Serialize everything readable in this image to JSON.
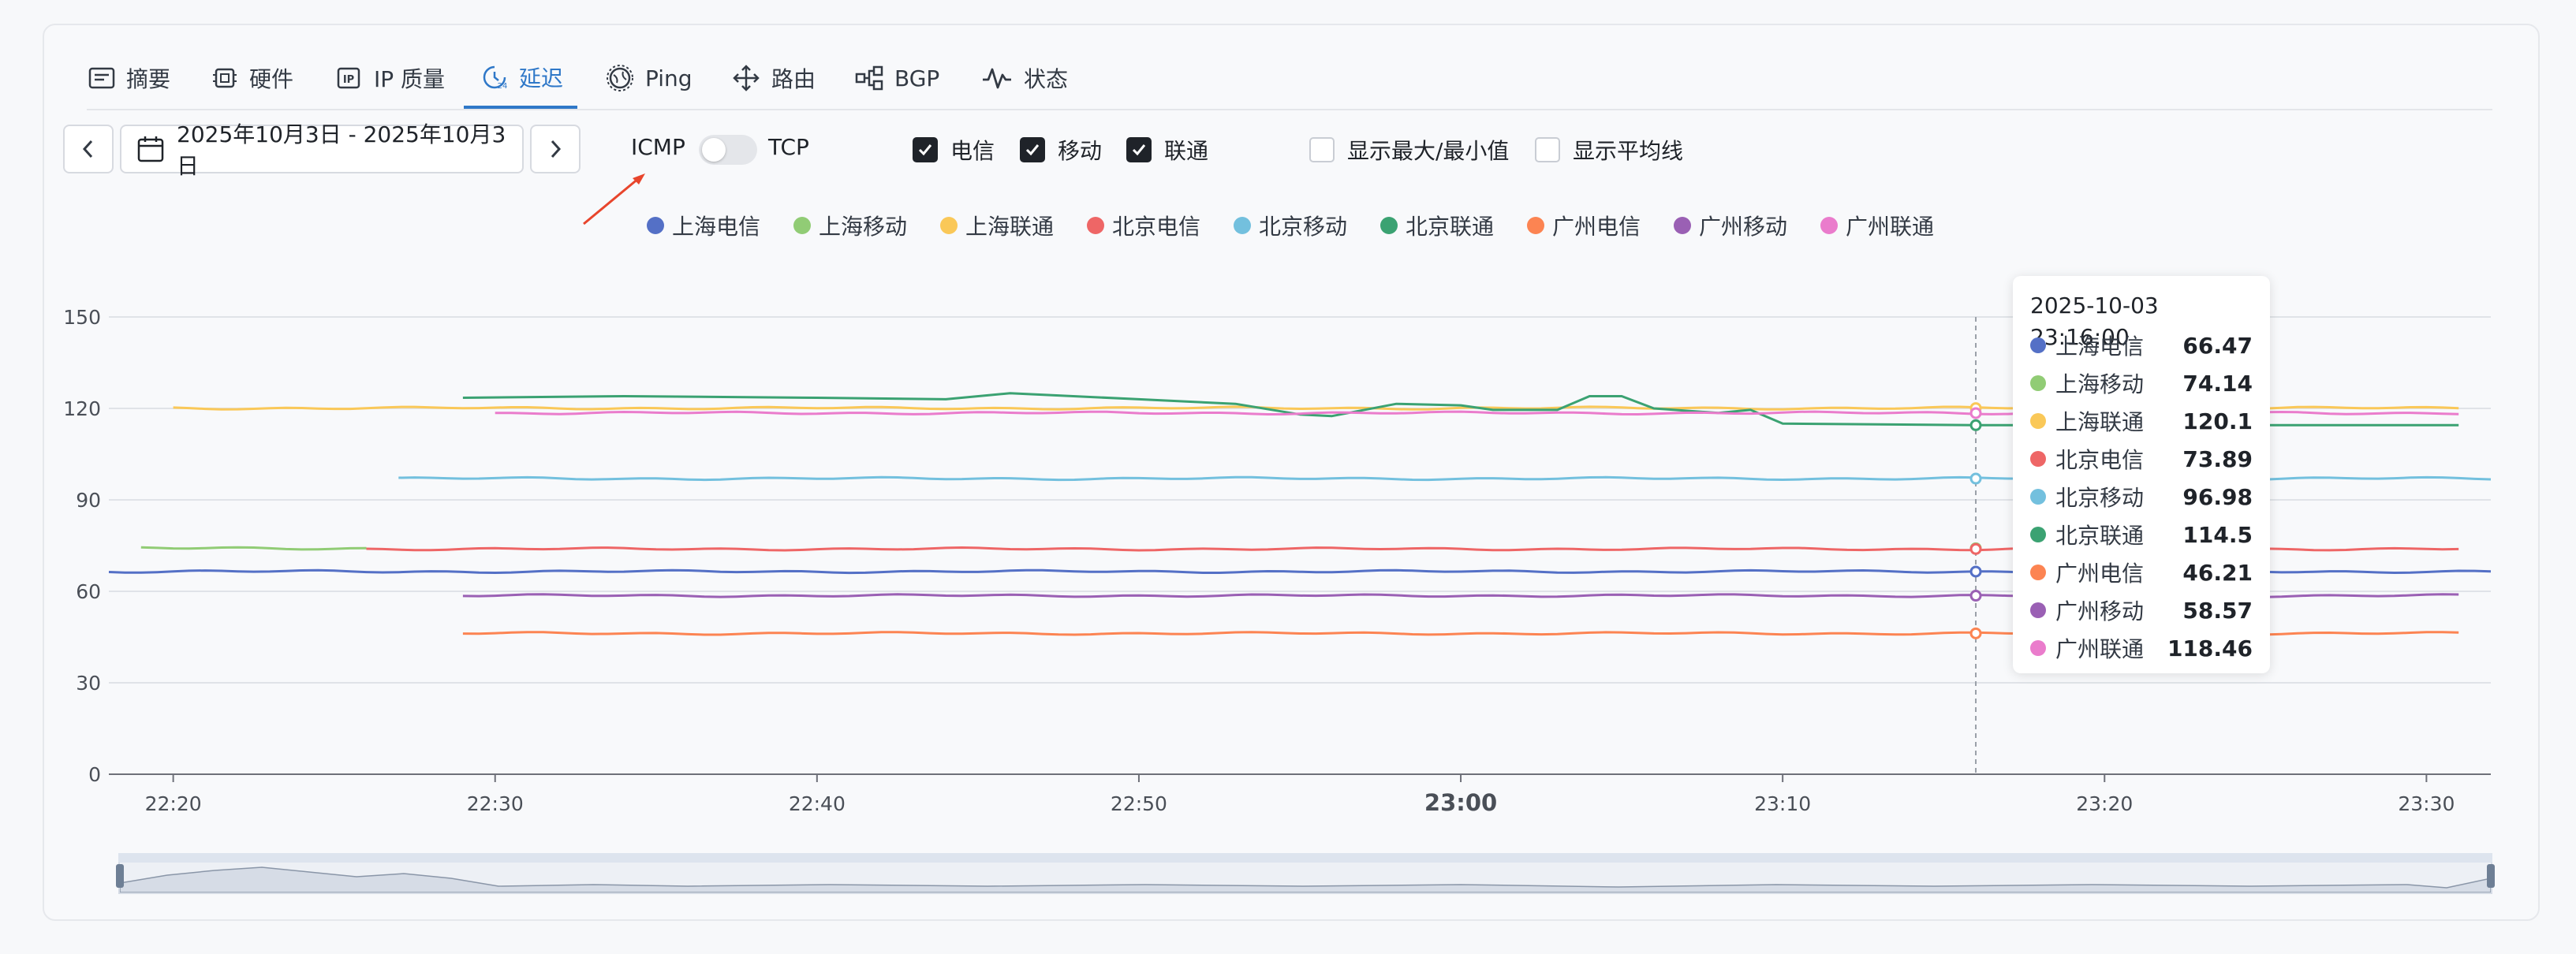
{
  "tabs": [
    {
      "label": "摘要",
      "icon": "summary-icon"
    },
    {
      "label": "硬件",
      "icon": "chip-icon"
    },
    {
      "label": "IP 质量",
      "icon": "ip-icon"
    },
    {
      "label": "延迟",
      "icon": "latency-clock-icon",
      "active": true
    },
    {
      "label": "Ping",
      "icon": "globe-icon"
    },
    {
      "label": "路由",
      "icon": "route-icon"
    },
    {
      "label": "BGP",
      "icon": "bgp-icon"
    },
    {
      "label": "状态",
      "icon": "pulse-icon"
    }
  ],
  "toolbar": {
    "date_range": "2025年10月3日 - 2025年10月3日",
    "protocol_left": "ICMP",
    "protocol_right": "TCP",
    "protocol_selected": "ICMP",
    "isps": [
      {
        "label": "电信",
        "checked": true
      },
      {
        "label": "移动",
        "checked": true
      },
      {
        "label": "联通",
        "checked": true
      }
    ],
    "options": [
      {
        "label": "显示最大/最小值",
        "checked": false
      },
      {
        "label": "显示平均线",
        "checked": false
      }
    ]
  },
  "colors": {
    "accent": "#2f78c8",
    "series": [
      "#5470c6",
      "#91cc75",
      "#fac858",
      "#ee6666",
      "#73c0de",
      "#3ba272",
      "#fc8452",
      "#9a60b4",
      "#ea7ccc"
    ]
  },
  "chart_data": {
    "type": "line",
    "x_ticks": [
      "22:20",
      "22:30",
      "22:40",
      "22:50",
      "23:00",
      "23:10",
      "23:20",
      "23:30"
    ],
    "y_ticks": [
      0,
      30,
      60,
      90,
      120,
      150
    ],
    "ylim": [
      0,
      150
    ],
    "xlim_minutes": [
      "22:18",
      "23:32"
    ],
    "grid": true,
    "legend_position": "top",
    "series": [
      {
        "name": "上海电信",
        "start": "22:18",
        "end": "23:32",
        "value": 66.5
      },
      {
        "name": "上海移动",
        "start": "22:19",
        "end": "22:26",
        "value": 74.1
      },
      {
        "name": "上海联通",
        "start": "22:20",
        "end": "23:31",
        "value": 120.1
      },
      {
        "name": "北京电信",
        "start": "22:26",
        "end": "23:31",
        "value": 73.9
      },
      {
        "name": "北京移动",
        "start": "22:27",
        "end": "23:32",
        "value": 97.0
      },
      {
        "name": "北京联通",
        "start": "22:29",
        "end": "23:31",
        "values": [
          {
            "t": "22:29",
            "v": 123.5
          },
          {
            "t": "22:34",
            "v": 124
          },
          {
            "t": "22:40",
            "v": 123.5
          },
          {
            "t": "22:44",
            "v": 123
          },
          {
            "t": "22:46",
            "v": 125
          },
          {
            "t": "22:50",
            "v": 123
          },
          {
            "t": "22:53",
            "v": 121.5
          },
          {
            "t": "22:55",
            "v": 118
          },
          {
            "t": "22:56",
            "v": 117.5
          },
          {
            "t": "22:58",
            "v": 121.5
          },
          {
            "t": "23:00",
            "v": 121
          },
          {
            "t": "23:01",
            "v": 119.5
          },
          {
            "t": "23:03",
            "v": 119.5
          },
          {
            "t": "23:04",
            "v": 124
          },
          {
            "t": "23:05",
            "v": 124
          },
          {
            "t": "23:06",
            "v": 120
          },
          {
            "t": "23:08",
            "v": 118.5
          },
          {
            "t": "23:09",
            "v": 119.5
          },
          {
            "t": "23:10",
            "v": 115
          },
          {
            "t": "23:16",
            "v": 114.5
          },
          {
            "t": "23:31",
            "v": 114.5
          }
        ]
      },
      {
        "name": "广州电信",
        "start": "22:29",
        "end": "23:31",
        "value": 46.2
      },
      {
        "name": "广州移动",
        "start": "22:29",
        "end": "23:31",
        "value": 58.6
      },
      {
        "name": "广州联通",
        "start": "22:30",
        "end": "23:31",
        "value": 118.5
      }
    ],
    "cursor": "23:16",
    "tooltip": {
      "title": "2025-10-03 23:16:00",
      "rows": [
        {
          "name": "上海电信",
          "value": "66.47"
        },
        {
          "name": "上海移动",
          "value": "74.14"
        },
        {
          "name": "上海联通",
          "value": "120.1"
        },
        {
          "name": "北京电信",
          "value": "73.89"
        },
        {
          "name": "北京移动",
          "value": "96.98"
        },
        {
          "name": "北京联通",
          "value": "114.5"
        },
        {
          "name": "广州电信",
          "value": "46.21"
        },
        {
          "name": "广州移动",
          "value": "58.57"
        },
        {
          "name": "广州联通",
          "value": "118.46"
        }
      ]
    }
  }
}
